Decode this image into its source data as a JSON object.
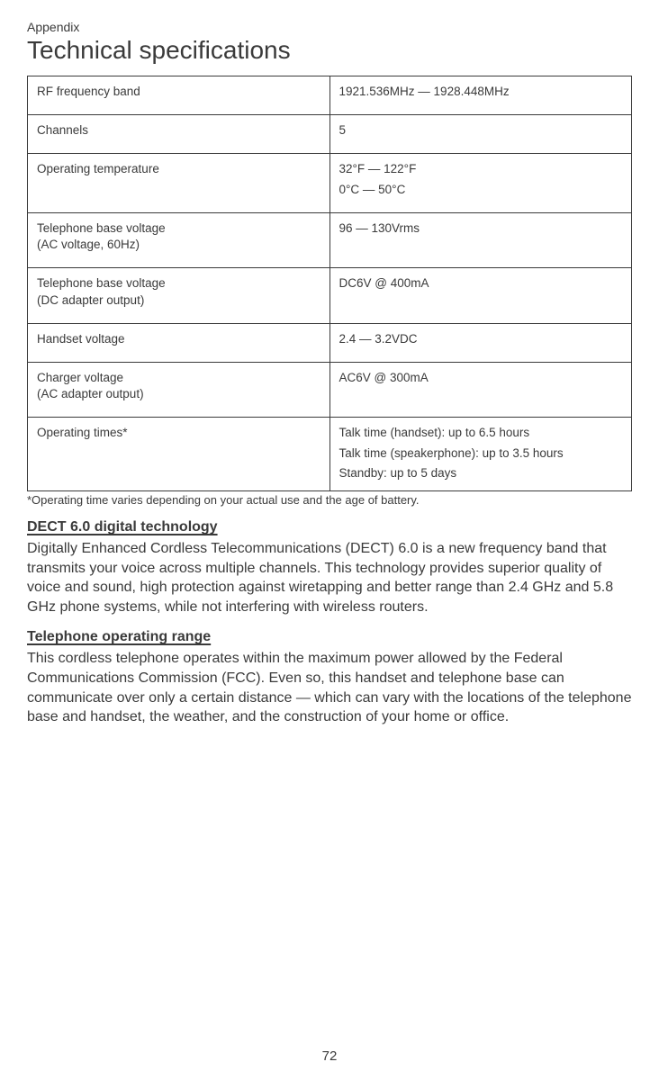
{
  "section_label": "Appendix",
  "page_title": "Technical specifications",
  "spec_table": {
    "rows": [
      {
        "label": "RF frequency band",
        "sublabel": "",
        "value": [
          "1921.536MHz — 1928.448MHz"
        ]
      },
      {
        "label": "Channels",
        "sublabel": "",
        "value": [
          "5"
        ]
      },
      {
        "label": "Operating temperature",
        "sublabel": "",
        "value": [
          "32°F — 122°F",
          "0°C — 50°C"
        ]
      },
      {
        "label": "Telephone base voltage",
        "sublabel": "(AC voltage, 60Hz)",
        "value": [
          "96 — 130Vrms"
        ]
      },
      {
        "label": "Telephone base voltage",
        "sublabel": "(DC adapter output)",
        "value": [
          "DC6V @ 400mA"
        ]
      },
      {
        "label": "Handset voltage",
        "sublabel": "",
        "value": [
          "2.4 — 3.2VDC"
        ]
      },
      {
        "label": "Charger voltage",
        "sublabel": "(AC adapter output)",
        "value": [
          "AC6V @ 300mA"
        ]
      },
      {
        "label": "Operating times*",
        "sublabel": "",
        "value": [
          "Talk time (handset): up to 6.5 hours",
          "Talk time (speakerphone): up to 3.5 hours",
          "Standby: up to 5 days"
        ]
      }
    ]
  },
  "footnote": "*Operating time varies depending on your actual use and the age of battery.",
  "sections": [
    {
      "heading": "DECT 6.0 digital technology",
      "body": "Digitally Enhanced Cordless Telecommunications (DECT) 6.0 is a new frequency band that transmits your voice across multiple channels. This technology provides superior quality of voice and sound, high protection against wiretapping and better range than 2.4 GHz and 5.8 GHz phone systems, while not interfering with wireless routers."
    },
    {
      "heading": "Telephone operating range",
      "body": "This cordless telephone operates within the maximum power allowed by the Federal Communications Commission (FCC). Even so, this handset and telephone base can communicate over only a certain distance — which can vary with the locations of the telephone base and handset, the weather, and the construction of your home or office."
    }
  ],
  "page_number": "72"
}
